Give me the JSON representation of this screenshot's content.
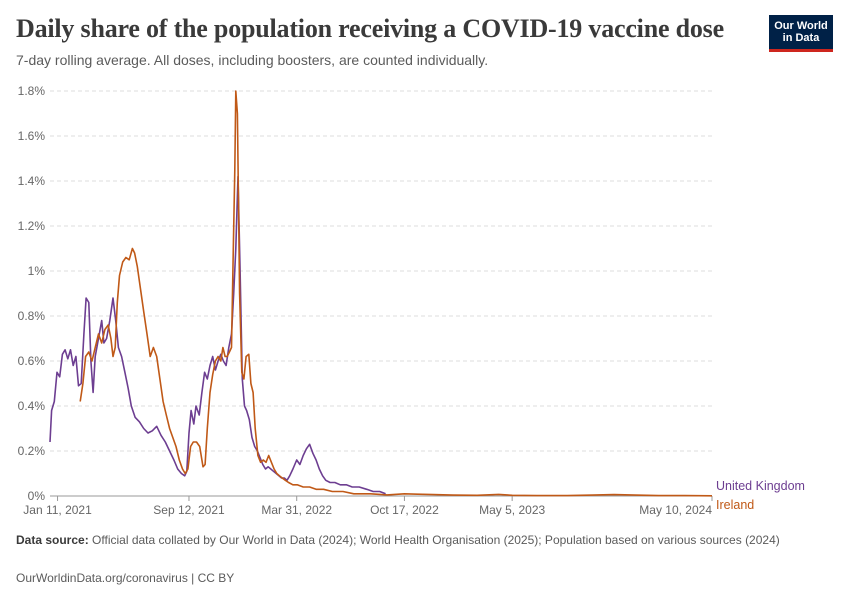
{
  "header": {
    "title": "Daily share of the population receiving a COVID-19 vaccine dose",
    "subtitle": "7-day rolling average. All doses, including boosters, are counted individually.",
    "logo_line1": "Our World",
    "logo_line2": "in Data"
  },
  "footer": {
    "source_label": "Data source:",
    "source_text": "Official data collated by Our World in Data (2024); World Health Organisation (2025); Population based on various sources (2024)",
    "url_text": "OurWorldinData.org/coronavirus | CC BY"
  },
  "colors": {
    "united_kingdom": "#6d3e91",
    "ireland": "#c05917",
    "grid": "#dddddd",
    "axis": "#999999"
  },
  "chart_data": {
    "type": "line",
    "title": "Daily share of the population receiving a COVID-19 vaccine dose",
    "subtitle": "7-day rolling average. All doses, including boosters, are counted individually.",
    "xlabel": "",
    "ylabel": "",
    "x_ticks": [
      "Jan 11, 2021",
      "Sep 12, 2021",
      "Mar 31, 2022",
      "Oct 17, 2022",
      "May 5, 2023",
      "May 10, 2024"
    ],
    "y_ticks": [
      "0%",
      "0.2%",
      "0.4%",
      "0.6%",
      "0.8%",
      "1%",
      "1.2%",
      "1.4%",
      "1.6%",
      "1.8%"
    ],
    "ylim": [
      0,
      1.8
    ],
    "xlim": [
      "2020-12-28",
      "2024-05-10"
    ],
    "grid": "horizontal dashed",
    "legend": "labels at right end of lines",
    "series": [
      {
        "name": "United Kingdom",
        "color": "#6d3e91",
        "points": [
          [
            "2020-12-28",
            0.24
          ],
          [
            "2020-12-31",
            0.38
          ],
          [
            "2021-01-05",
            0.42
          ],
          [
            "2021-01-10",
            0.55
          ],
          [
            "2021-01-15",
            0.53
          ],
          [
            "2021-01-20",
            0.63
          ],
          [
            "2021-01-25",
            0.65
          ],
          [
            "2021-01-30",
            0.61
          ],
          [
            "2021-02-04",
            0.65
          ],
          [
            "2021-02-09",
            0.58
          ],
          [
            "2021-02-14",
            0.62
          ],
          [
            "2021-02-19",
            0.49
          ],
          [
            "2021-02-24",
            0.5
          ],
          [
            "2021-03-01",
            0.72
          ],
          [
            "2021-03-05",
            0.88
          ],
          [
            "2021-03-10",
            0.86
          ],
          [
            "2021-03-14",
            0.6
          ],
          [
            "2021-03-18",
            0.46
          ],
          [
            "2021-03-22",
            0.62
          ],
          [
            "2021-03-28",
            0.7
          ],
          [
            "2021-04-03",
            0.78
          ],
          [
            "2021-04-07",
            0.68
          ],
          [
            "2021-04-12",
            0.7
          ],
          [
            "2021-04-18",
            0.78
          ],
          [
            "2021-04-24",
            0.88
          ],
          [
            "2021-04-29",
            0.78
          ],
          [
            "2021-05-04",
            0.66
          ],
          [
            "2021-05-10",
            0.62
          ],
          [
            "2021-05-16",
            0.55
          ],
          [
            "2021-05-22",
            0.48
          ],
          [
            "2021-05-28",
            0.4
          ],
          [
            "2021-06-04",
            0.35
          ],
          [
            "2021-06-12",
            0.33
          ],
          [
            "2021-06-20",
            0.3
          ],
          [
            "2021-06-28",
            0.28
          ],
          [
            "2021-07-06",
            0.29
          ],
          [
            "2021-07-14",
            0.31
          ],
          [
            "2021-07-22",
            0.27
          ],
          [
            "2021-07-30",
            0.24
          ],
          [
            "2021-08-07",
            0.2
          ],
          [
            "2021-08-15",
            0.16
          ],
          [
            "2021-08-22",
            0.12
          ],
          [
            "2021-08-29",
            0.1
          ],
          [
            "2021-09-04",
            0.09
          ],
          [
            "2021-09-08",
            0.11
          ],
          [
            "2021-09-12",
            0.28
          ],
          [
            "2021-09-16",
            0.38
          ],
          [
            "2021-09-21",
            0.32
          ],
          [
            "2021-09-25",
            0.4
          ],
          [
            "2021-10-01",
            0.36
          ],
          [
            "2021-10-06",
            0.46
          ],
          [
            "2021-10-11",
            0.55
          ],
          [
            "2021-10-16",
            0.52
          ],
          [
            "2021-10-21",
            0.58
          ],
          [
            "2021-10-26",
            0.62
          ],
          [
            "2021-10-31",
            0.56
          ],
          [
            "2021-11-05",
            0.6
          ],
          [
            "2021-11-10",
            0.63
          ],
          [
            "2021-11-15",
            0.6
          ],
          [
            "2021-11-20",
            0.58
          ],
          [
            "2021-11-25",
            0.66
          ],
          [
            "2021-11-30",
            0.72
          ],
          [
            "2021-12-04",
            0.9
          ],
          [
            "2021-12-08",
            1.1
          ],
          [
            "2021-12-12",
            1.42
          ],
          [
            "2021-12-16",
            1.0
          ],
          [
            "2021-12-20",
            0.52
          ],
          [
            "2021-12-24",
            0.4
          ],
          [
            "2021-12-28",
            0.38
          ],
          [
            "2022-01-02",
            0.34
          ],
          [
            "2022-01-07",
            0.26
          ],
          [
            "2022-01-12",
            0.22
          ],
          [
            "2022-01-17",
            0.2
          ],
          [
            "2022-01-22",
            0.17
          ],
          [
            "2022-01-27",
            0.14
          ],
          [
            "2022-02-01",
            0.12
          ],
          [
            "2022-02-06",
            0.13
          ],
          [
            "2022-02-11",
            0.12
          ],
          [
            "2022-02-16",
            0.11
          ],
          [
            "2022-02-21",
            0.1
          ],
          [
            "2022-02-26",
            0.09
          ],
          [
            "2022-03-03",
            0.08
          ],
          [
            "2022-03-08",
            0.08
          ],
          [
            "2022-03-13",
            0.07
          ],
          [
            "2022-03-18",
            0.09
          ],
          [
            "2022-03-24",
            0.12
          ],
          [
            "2022-03-31",
            0.16
          ],
          [
            "2022-04-06",
            0.14
          ],
          [
            "2022-04-12",
            0.18
          ],
          [
            "2022-04-18",
            0.21
          ],
          [
            "2022-04-24",
            0.23
          ],
          [
            "2022-04-30",
            0.19
          ],
          [
            "2022-05-06",
            0.16
          ],
          [
            "2022-05-12",
            0.12
          ],
          [
            "2022-05-18",
            0.09
          ],
          [
            "2022-05-24",
            0.07
          ],
          [
            "2022-06-01",
            0.06
          ],
          [
            "2022-06-10",
            0.06
          ],
          [
            "2022-06-20",
            0.05
          ],
          [
            "2022-07-01",
            0.05
          ],
          [
            "2022-07-12",
            0.04
          ],
          [
            "2022-07-25",
            0.04
          ],
          [
            "2022-08-08",
            0.03
          ],
          [
            "2022-08-20",
            0.02
          ],
          [
            "2022-09-01",
            0.02
          ],
          [
            "2022-09-12",
            0.01
          ]
        ]
      },
      {
        "name": "Ireland",
        "color": "#c05917",
        "points": [
          [
            "2021-02-22",
            0.42
          ],
          [
            "2021-02-27",
            0.5
          ],
          [
            "2021-03-04",
            0.62
          ],
          [
            "2021-03-10",
            0.64
          ],
          [
            "2021-03-16",
            0.6
          ],
          [
            "2021-03-22",
            0.66
          ],
          [
            "2021-03-28",
            0.72
          ],
          [
            "2021-04-03",
            0.68
          ],
          [
            "2021-04-09",
            0.74
          ],
          [
            "2021-04-15",
            0.76
          ],
          [
            "2021-04-20",
            0.7
          ],
          [
            "2021-04-24",
            0.62
          ],
          [
            "2021-04-28",
            0.66
          ],
          [
            "2021-05-02",
            0.86
          ],
          [
            "2021-05-06",
            0.98
          ],
          [
            "2021-05-12",
            1.04
          ],
          [
            "2021-05-18",
            1.06
          ],
          [
            "2021-05-24",
            1.05
          ],
          [
            "2021-05-30",
            1.1
          ],
          [
            "2021-06-03",
            1.08
          ],
          [
            "2021-06-08",
            1.02
          ],
          [
            "2021-06-14",
            0.92
          ],
          [
            "2021-06-20",
            0.82
          ],
          [
            "2021-06-26",
            0.72
          ],
          [
            "2021-07-02",
            0.62
          ],
          [
            "2021-07-08",
            0.66
          ],
          [
            "2021-07-14",
            0.62
          ],
          [
            "2021-07-20",
            0.52
          ],
          [
            "2021-07-26",
            0.42
          ],
          [
            "2021-08-01",
            0.36
          ],
          [
            "2021-08-07",
            0.3
          ],
          [
            "2021-08-13",
            0.26
          ],
          [
            "2021-08-19",
            0.22
          ],
          [
            "2021-08-25",
            0.16
          ],
          [
            "2021-08-31",
            0.12
          ],
          [
            "2021-09-05",
            0.1
          ],
          [
            "2021-09-10",
            0.12
          ],
          [
            "2021-09-15",
            0.22
          ],
          [
            "2021-09-20",
            0.24
          ],
          [
            "2021-09-26",
            0.24
          ],
          [
            "2021-10-02",
            0.22
          ],
          [
            "2021-10-08",
            0.13
          ],
          [
            "2021-10-12",
            0.14
          ],
          [
            "2021-10-16",
            0.3
          ],
          [
            "2021-10-21",
            0.46
          ],
          [
            "2021-10-26",
            0.54
          ],
          [
            "2021-10-31",
            0.6
          ],
          [
            "2021-11-05",
            0.62
          ],
          [
            "2021-11-10",
            0.6
          ],
          [
            "2021-11-14",
            0.66
          ],
          [
            "2021-11-18",
            0.62
          ],
          [
            "2021-11-22",
            0.62
          ],
          [
            "2021-11-26",
            0.64
          ],
          [
            "2021-11-30",
            0.66
          ],
          [
            "2021-12-03",
            1.05
          ],
          [
            "2021-12-06",
            1.45
          ],
          [
            "2021-12-08",
            1.8
          ],
          [
            "2021-12-11",
            1.7
          ],
          [
            "2021-12-15",
            0.9
          ],
          [
            "2021-12-19",
            0.55
          ],
          [
            "2021-12-23",
            0.52
          ],
          [
            "2021-12-27",
            0.62
          ],
          [
            "2022-01-01",
            0.63
          ],
          [
            "2022-01-05",
            0.5
          ],
          [
            "2022-01-09",
            0.46
          ],
          [
            "2022-01-13",
            0.3
          ],
          [
            "2022-01-18",
            0.18
          ],
          [
            "2022-01-23",
            0.15
          ],
          [
            "2022-01-28",
            0.16
          ],
          [
            "2022-02-02",
            0.15
          ],
          [
            "2022-02-07",
            0.18
          ],
          [
            "2022-02-12",
            0.15
          ],
          [
            "2022-02-17",
            0.12
          ],
          [
            "2022-02-22",
            0.1
          ],
          [
            "2022-02-27",
            0.09
          ],
          [
            "2022-03-04",
            0.08
          ],
          [
            "2022-03-10",
            0.07
          ],
          [
            "2022-03-16",
            0.06
          ],
          [
            "2022-03-24",
            0.05
          ],
          [
            "2022-04-01",
            0.05
          ],
          [
            "2022-04-12",
            0.04
          ],
          [
            "2022-04-24",
            0.04
          ],
          [
            "2022-05-06",
            0.03
          ],
          [
            "2022-05-20",
            0.03
          ],
          [
            "2022-06-05",
            0.02
          ],
          [
            "2022-06-25",
            0.02
          ],
          [
            "2022-07-15",
            0.01
          ],
          [
            "2022-08-15",
            0.01
          ],
          [
            "2022-09-15",
            0.005
          ],
          [
            "2022-10-17",
            0.01
          ],
          [
            "2022-11-10",
            0.008
          ],
          [
            "2022-12-10",
            0.006
          ],
          [
            "2023-01-15",
            0.004
          ],
          [
            "2023-03-01",
            0.003
          ],
          [
            "2023-04-10",
            0.007
          ],
          [
            "2023-05-05",
            0.003
          ],
          [
            "2023-06-20",
            0.002
          ],
          [
            "2023-08-15",
            0.002
          ],
          [
            "2023-10-01",
            0.004
          ],
          [
            "2023-11-10",
            0.006
          ],
          [
            "2023-12-20",
            0.004
          ],
          [
            "2024-02-01",
            0.002
          ],
          [
            "2024-03-20",
            0.002
          ],
          [
            "2024-05-10",
            0.001
          ]
        ]
      }
    ]
  }
}
